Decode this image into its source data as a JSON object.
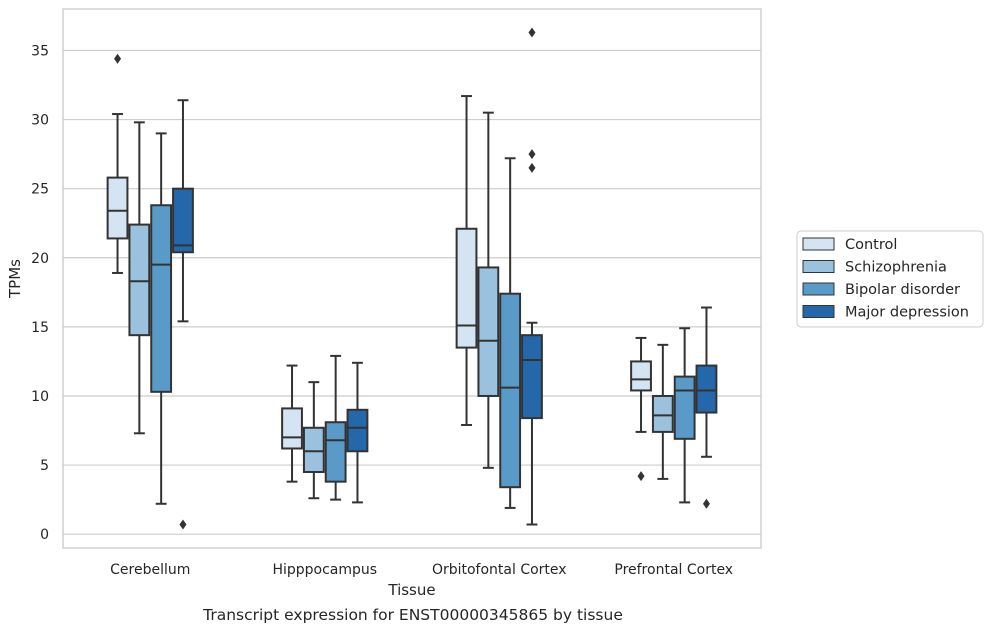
{
  "caption": "Transcript expression for ENST00000345865 by tissue",
  "chart_data": {
    "type": "boxplot",
    "xlabel": "Tissue",
    "ylabel": "TPMs",
    "ylim": [
      -1,
      38
    ],
    "yticks": [
      0,
      5,
      10,
      15,
      20,
      25,
      30,
      35
    ],
    "grid": true,
    "legend_position": "outside-right",
    "categories": [
      "Cerebellum",
      "Hipppocampus",
      "Orbitofontal Cortex",
      "Prefrontal Cortex"
    ],
    "series": [
      {
        "name": "Control",
        "color": "#d5e4f2",
        "boxes": [
          {
            "whislo": 18.9,
            "q1": 21.4,
            "med": 23.4,
            "q3": 25.8,
            "whishi": 30.4,
            "fliers": [
              34.4
            ]
          },
          {
            "whislo": 3.8,
            "q1": 6.2,
            "med": 7.0,
            "q3": 9.1,
            "whishi": 12.2,
            "fliers": []
          },
          {
            "whislo": 7.9,
            "q1": 13.5,
            "med": 15.1,
            "q3": 22.1,
            "whishi": 31.7,
            "fliers": []
          },
          {
            "whislo": 7.4,
            "q1": 10.4,
            "med": 11.2,
            "q3": 12.5,
            "whishi": 14.2,
            "fliers": [
              4.2
            ]
          }
        ]
      },
      {
        "name": "Schizophrenia",
        "color": "#9ac1dd",
        "boxes": [
          {
            "whislo": 7.3,
            "q1": 14.4,
            "med": 18.3,
            "q3": 22.4,
            "whishi": 29.8,
            "fliers": []
          },
          {
            "whislo": 2.6,
            "q1": 4.5,
            "med": 6.0,
            "q3": 7.7,
            "whishi": 11.0,
            "fliers": []
          },
          {
            "whislo": 4.8,
            "q1": 10.0,
            "med": 14.0,
            "q3": 19.3,
            "whishi": 30.5,
            "fliers": []
          },
          {
            "whislo": 4.0,
            "q1": 7.4,
            "med": 8.6,
            "q3": 10.0,
            "whishi": 13.7,
            "fliers": []
          }
        ]
      },
      {
        "name": "Bipolar disorder",
        "color": "#5a9ac9",
        "boxes": [
          {
            "whislo": 2.2,
            "q1": 10.3,
            "med": 19.5,
            "q3": 23.8,
            "whishi": 29.0,
            "fliers": []
          },
          {
            "whislo": 2.5,
            "q1": 3.8,
            "med": 6.8,
            "q3": 8.1,
            "whishi": 12.9,
            "fliers": []
          },
          {
            "whislo": 1.9,
            "q1": 3.4,
            "med": 10.6,
            "q3": 17.4,
            "whishi": 27.2,
            "fliers": []
          },
          {
            "whislo": 2.3,
            "q1": 6.9,
            "med": 10.4,
            "q3": 11.4,
            "whishi": 14.9,
            "fliers": []
          }
        ]
      },
      {
        "name": "Major depression",
        "color": "#2468ab",
        "boxes": [
          {
            "whislo": 15.4,
            "q1": 20.4,
            "med": 20.9,
            "q3": 25.0,
            "whishi": 31.4,
            "fliers": [
              0.7
            ]
          },
          {
            "whislo": 2.3,
            "q1": 6.0,
            "med": 7.7,
            "q3": 9.0,
            "whishi": 12.4,
            "fliers": []
          },
          {
            "whislo": 0.7,
            "q1": 8.4,
            "med": 12.6,
            "q3": 14.4,
            "whishi": 15.3,
            "fliers": [
              26.5,
              27.5,
              36.3
            ]
          },
          {
            "whislo": 5.6,
            "q1": 8.8,
            "med": 10.4,
            "q3": 12.2,
            "whishi": 16.4,
            "fliers": [
              2.2
            ]
          }
        ]
      }
    ]
  }
}
